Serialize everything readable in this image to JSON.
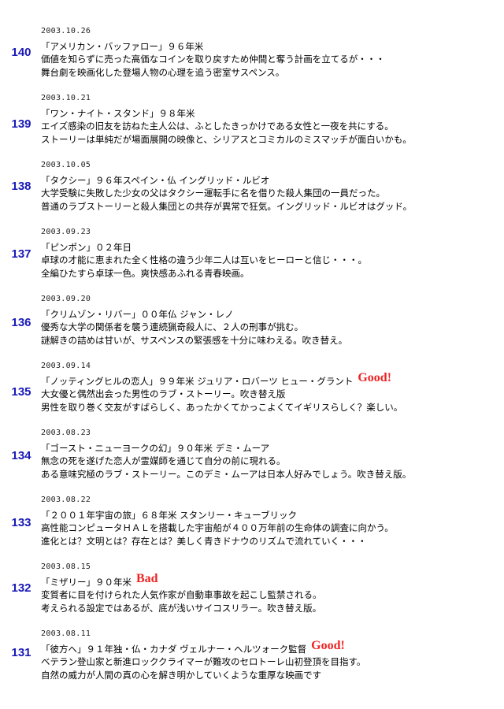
{
  "entries": [
    {
      "num": "140",
      "date": "2003.10.26",
      "title": "「アメリカン・バッファロー」９６年米",
      "rating": "",
      "line2": "価値を知らずに売った高価なコインを取り戻すため仲間と奪う計画を立てるが・・・",
      "line3": "舞台劇を映画化した登場人物の心理を追う密室サスペンス。"
    },
    {
      "num": "139",
      "date": "2003.10.21",
      "title": "「ワン・ナイト・スタンド」９８年米",
      "rating": "",
      "line2": "エイズ感染の旧友を訪ねた主人公は、ふとしたきっかけである女性と一夜を共にする。",
      "line3": "ストーリーは単純だが場面展開の映像と、シリアスとコミカルのミスマッチが面白いかも。"
    },
    {
      "num": "138",
      "date": "2003.10.05",
      "title": "「タクシー」９６年スペイン・仏 イングリッド・ルビオ",
      "rating": "",
      "line2": "大学受験に失敗した少女の父はタクシー運転手に名を借りた殺人集団の一員だった。",
      "line3": "普通のラブストーリーと殺人集団との共存が異常で狂気。イングリッド・ルビオはグッド。"
    },
    {
      "num": "137",
      "date": "2003.09.23",
      "title": "「ピンポン」０２年日",
      "rating": "",
      "line2": "卓球の才能に恵まれた全く性格の違う少年二人は互いをヒーローと信じ・・・。",
      "line3": "全編ひたすら卓球一色。爽快感あふれる青春映画。"
    },
    {
      "num": "136",
      "date": "2003.09.20",
      "title": "「クリムゾン・リバー」００年仏 ジャン・レノ",
      "rating": "",
      "line2": "優秀な大学の関係者を襲う連続猟奇殺人に、２人の刑事が挑む。",
      "line3": "謎解きの詰めは甘いが、サスペンスの緊張感を十分に味わえる。吹き替え。"
    },
    {
      "num": "135",
      "date": "2003.09.14",
      "title": "「ノッティングヒルの恋人」９９年米 ジュリア・ロバーツ ヒュー・グラント",
      "rating": "Good!",
      "line2": "大女優と偶然出会った男性のラブ・ストーリー。吹き替え版",
      "line3": "男性を取り巻く交友がすばらしく、あったかくてかっこよくてイギリスらしく？楽しい。"
    },
    {
      "num": "134",
      "date": "2003.08.23",
      "title": "「ゴースト・ニューヨークの幻」９０年米 デミ・ムーア",
      "rating": "",
      "line2": "無念の死を遂げた恋人が霊媒師を通じて自分の前に現れる。",
      "line3": "ある意味究極のラブ・ストーリー。このデミ・ムーアは日本人好みでしょう。吹き替え版。"
    },
    {
      "num": "133",
      "date": "2003.08.22",
      "title": "「２００１年宇宙の旅」６８年米 スタンリー・キューブリック",
      "rating": "",
      "line2": "高性能コンピュータＨＡＬを搭載した宇宙船が４００万年前の生命体の調査に向かう。",
      "line3": "進化とは？文明とは？存在とは？美しく青きドナウのリズムで流れていく・・・"
    },
    {
      "num": "132",
      "date": "2003.08.15",
      "title": "「ミザリー」９０年米",
      "rating": "Bad",
      "line2": "変質者に目を付けられた人気作家が自動車事故を起こし監禁される。",
      "line3": "考えられる設定ではあるが、底が浅いサイコスリラー。吹き替え版。"
    },
    {
      "num": "131",
      "date": "2003.08.11",
      "title": "「彼方へ」９１年独・仏・カナダ ヴェルナー・ヘルツォーク監督",
      "rating": "Good!",
      "line2": "ベテラン登山家と新進ロッククライマーが難攻のセロトーレ山初登頂を目指す。",
      "line3": "自然の威力が人間の真の心を解き明かしていくような重厚な映画です"
    }
  ]
}
